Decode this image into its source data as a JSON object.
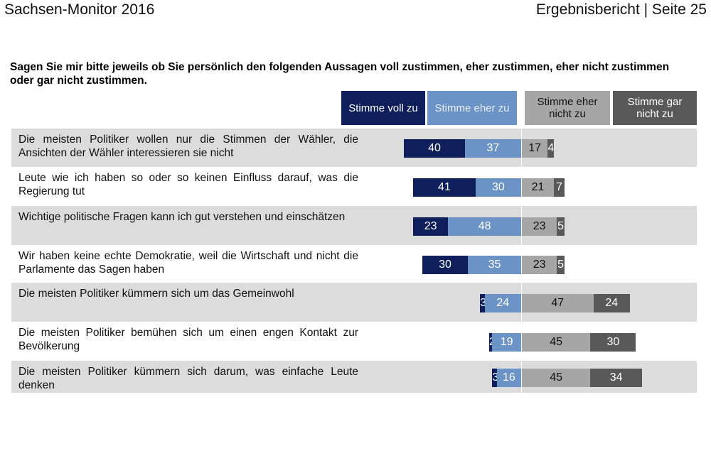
{
  "header": {
    "left": "Sachsen-Monitor 2016",
    "right": "Ergebnisbericht | Seite 25"
  },
  "chart_data": {
    "type": "bar",
    "orientation": "horizontal-diverging-stacked",
    "title": "Sagen Sie mir bitte jeweils ob Sie persönlich den folgenden Aussagen voll zustimmen, eher zustimmen, eher nicht zustimmen oder gar nicht zustimmen.",
    "legend_position": "top",
    "categories": [
      "Die meisten Politiker wollen nur die Stimmen der Wähler, die Ansichten der Wähler interessieren sie nicht",
      "Leute wie ich haben so oder so keinen Einfluss darauf, was die Regierung tut",
      "Wichtige politische Fragen kann ich gut verstehen und einschätzen",
      "Wir haben keine echte Demokratie, weil die Wirtschaft und nicht die Parlamente das Sagen haben",
      "Die meisten Politiker kümmern sich um das Gemeinwohl",
      "Die meisten Politiker bemühen sich um einen engen Kontakt zur Bevölkerung",
      "Die meisten Politiker kümmern sich darum, was einfache Leute denken"
    ],
    "series": [
      {
        "name": "Stimme voll zu",
        "color": "#0f1f5c",
        "text": "#ffffff",
        "values": [
          40,
          41,
          23,
          30,
          3,
          2,
          3
        ]
      },
      {
        "name": "Stimme eher zu",
        "color": "#6b93c6",
        "text": "#ffffff",
        "values": [
          37,
          30,
          48,
          35,
          24,
          19,
          16
        ]
      },
      {
        "name": "Stimme eher nicht zu",
        "color": "#a6a6a6",
        "text": "#111111",
        "values": [
          17,
          21,
          23,
          23,
          47,
          45,
          45
        ]
      },
      {
        "name": "Stimme gar nicht zu",
        "color": "#595959",
        "text": "#ffffff",
        "values": [
          4,
          7,
          5,
          5,
          24,
          30,
          34
        ]
      }
    ]
  }
}
